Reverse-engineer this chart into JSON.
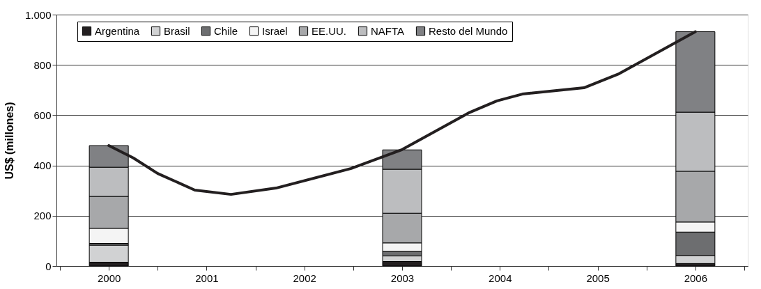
{
  "chart_data": {
    "type": "bar",
    "stacked": true,
    "ylabel": "US$ (millones)",
    "x": [
      2000,
      2001,
      2002,
      2003,
      2004,
      2005,
      2006
    ],
    "xlim": [
      1999.5,
      2006.5
    ],
    "xticks": [
      {
        "value": 1999.5,
        "label": null
      },
      2000,
      {
        "value": 2000.5,
        "label": null
      },
      2001,
      {
        "value": 2001.5,
        "label": null
      },
      2002,
      {
        "value": 2002.5,
        "label": null
      },
      2003,
      {
        "value": 2003.5,
        "label": null
      },
      2004,
      {
        "value": 2004.5,
        "label": null
      },
      2005,
      {
        "value": 2005.5,
        "label": null
      },
      2006,
      {
        "value": 2006.5,
        "label": null
      }
    ],
    "ylim": [
      0,
      1000
    ],
    "yticks": [
      0,
      200,
      400,
      600,
      800,
      {
        "value": 1000,
        "label": "1.000"
      }
    ],
    "grid": "y",
    "legend": "top",
    "series": [
      {
        "name": "Argentina",
        "color": "#231f20",
        "values": [
          15,
          null,
          null,
          18,
          null,
          null,
          10
        ]
      },
      {
        "name": "Brasil",
        "color": "#d1d2d3",
        "values": [
          68,
          null,
          null,
          22,
          null,
          null,
          32
        ]
      },
      {
        "name": "Chile",
        "color": "#6d6e70",
        "values": [
          7,
          null,
          null,
          18,
          null,
          null,
          93
        ]
      },
      {
        "name": "Israel",
        "color": "#f4f4f4",
        "values": [
          60,
          null,
          null,
          34,
          null,
          null,
          40
        ]
      },
      {
        "name": "EE.UU.",
        "color": "#a7a8aa",
        "values": [
          127,
          null,
          null,
          118,
          null,
          null,
          202
        ]
      },
      {
        "name": "NAFTA",
        "color": "#bcbdbf",
        "values": [
          116,
          null,
          null,
          175,
          null,
          null,
          235
        ]
      },
      {
        "name": "Resto del Mundo",
        "color": "#808184",
        "values": [
          86,
          null,
          null,
          77,
          null,
          null,
          320
        ]
      },
      {
        "type": "line",
        "color": "#231f20",
        "x": [
          2000,
          2000.25,
          2000.5,
          2000.88,
          2001.25,
          2001.71,
          2002.48,
          2003,
          2003.68,
          2003.97,
          2004.23,
          2004.86,
          2005.22,
          2006
        ],
        "values": [
          479,
          430,
          368,
          302,
          285,
          310,
          388,
          463,
          609,
          657,
          684,
          709,
          765,
          932
        ]
      }
    ]
  }
}
